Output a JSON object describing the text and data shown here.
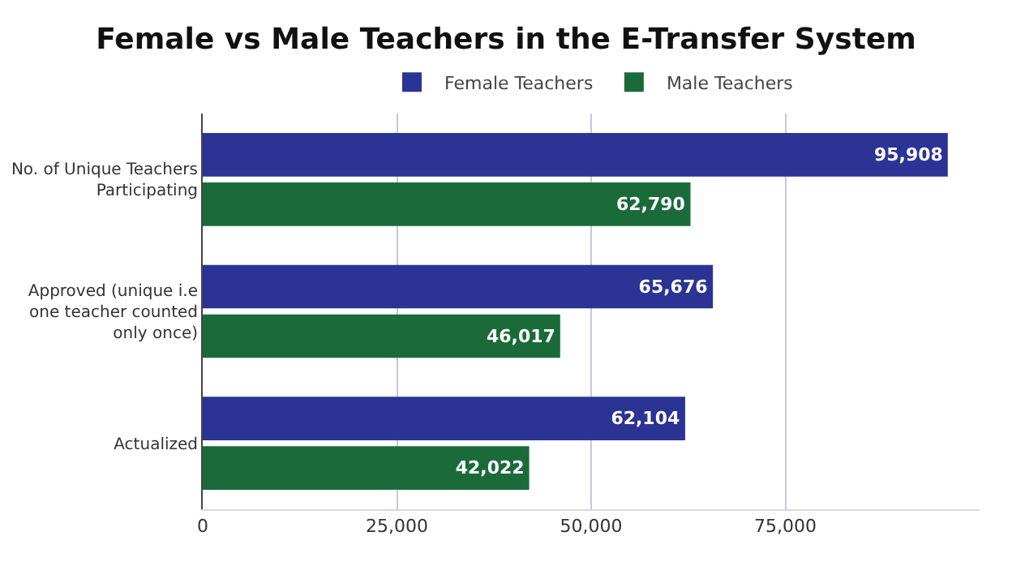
{
  "chart_data": {
    "type": "bar",
    "orientation": "horizontal",
    "title": "Female vs Male Teachers in the E-Transfer System",
    "categories": [
      "No. of Unique Teachers Participating",
      "Approved (unique i.e one teacher counted only once)",
      "Actualized"
    ],
    "series": [
      {
        "name": "Female Teachers",
        "color": "#2b3494",
        "values": [
          95908,
          65676,
          62104
        ],
        "value_labels": [
          "95,908",
          "65,676",
          "62,104"
        ]
      },
      {
        "name": "Male Teachers",
        "color": "#1b6b3a",
        "values": [
          62790,
          46017,
          42022
        ],
        "value_labels": [
          "62,790",
          "46,017",
          "42,022"
        ]
      }
    ],
    "xlim": [
      0,
      100000
    ],
    "xticks": [
      0,
      {
        "value": 25000,
        "label": "25,000"
      },
      {
        "value": 50000,
        "label": "50,000"
      },
      {
        "value": 75000,
        "label": "75,000"
      }
    ],
    "grid": "x",
    "legend": "top"
  }
}
